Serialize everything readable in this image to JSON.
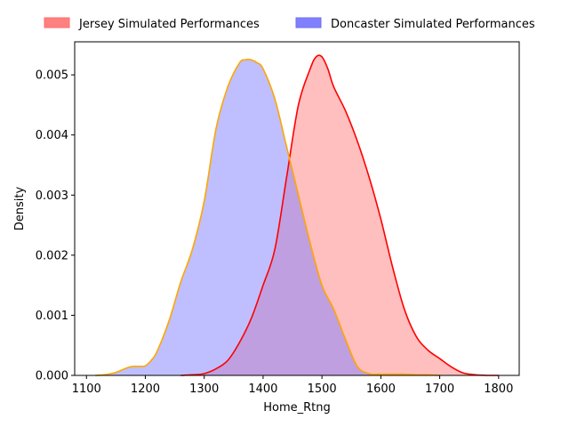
{
  "chart_data": {
    "type": "area",
    "xlabel": "Home_Rtng",
    "ylabel": "Density",
    "xlim": [
      1080,
      1835
    ],
    "ylim": [
      0,
      0.00555
    ],
    "xticks": [
      1100,
      1200,
      1300,
      1400,
      1500,
      1600,
      1700,
      1800
    ],
    "yticks": [
      0.0,
      0.001,
      0.002,
      0.003,
      0.004,
      0.005
    ],
    "ytick_labels": [
      "0.000",
      "0.001",
      "0.002",
      "0.003",
      "0.004",
      "0.005"
    ],
    "grid": false,
    "legend": {
      "placement": "top, outside plot, horizontal"
    },
    "series": [
      {
        "name": "Jersey Simulated Performances",
        "fill_color": "#ff8080",
        "line_color": "#ff0000",
        "x": [
          1260,
          1280,
          1300,
          1320,
          1340,
          1360,
          1380,
          1400,
          1420,
          1440,
          1460,
          1480,
          1490,
          1500,
          1510,
          1520,
          1540,
          1560,
          1580,
          1600,
          1620,
          1640,
          1660,
          1680,
          1700,
          1720,
          1740,
          1760,
          1780,
          1800
        ],
        "y": [
          0.0,
          1e-05,
          3e-05,
          0.00011,
          0.00025,
          0.00055,
          0.00095,
          0.0015,
          0.0021,
          0.0033,
          0.0045,
          0.0051,
          0.0053,
          0.0053,
          0.0051,
          0.0048,
          0.0044,
          0.0039,
          0.0033,
          0.0026,
          0.0018,
          0.0011,
          0.00065,
          0.00042,
          0.00028,
          0.00014,
          4e-05,
          1e-05,
          0.0,
          0.0
        ]
      },
      {
        "name": "Doncaster Simulated Performances",
        "fill_color": "#8080ff",
        "line_color": "#ffa500",
        "x": [
          1115,
          1130,
          1150,
          1170,
          1180,
          1190,
          1200,
          1210,
          1220,
          1240,
          1260,
          1280,
          1300,
          1320,
          1340,
          1360,
          1370,
          1380,
          1390,
          1400,
          1420,
          1440,
          1460,
          1480,
          1500,
          1520,
          1540,
          1560,
          1580,
          1600,
          1620,
          1640,
          1660,
          1680,
          1700
        ],
        "y": [
          0.0,
          1e-05,
          5e-05,
          0.00013,
          0.00015,
          0.00015,
          0.00016,
          0.00025,
          0.0004,
          0.0009,
          0.00155,
          0.0021,
          0.0029,
          0.0041,
          0.0048,
          0.0052,
          0.00525,
          0.00525,
          0.0052,
          0.0051,
          0.0046,
          0.0038,
          0.003,
          0.0022,
          0.0015,
          0.0011,
          0.0006,
          0.00015,
          3e-05,
          2e-05,
          2e-05,
          2e-05,
          1e-05,
          1e-05,
          0.0
        ]
      }
    ]
  }
}
